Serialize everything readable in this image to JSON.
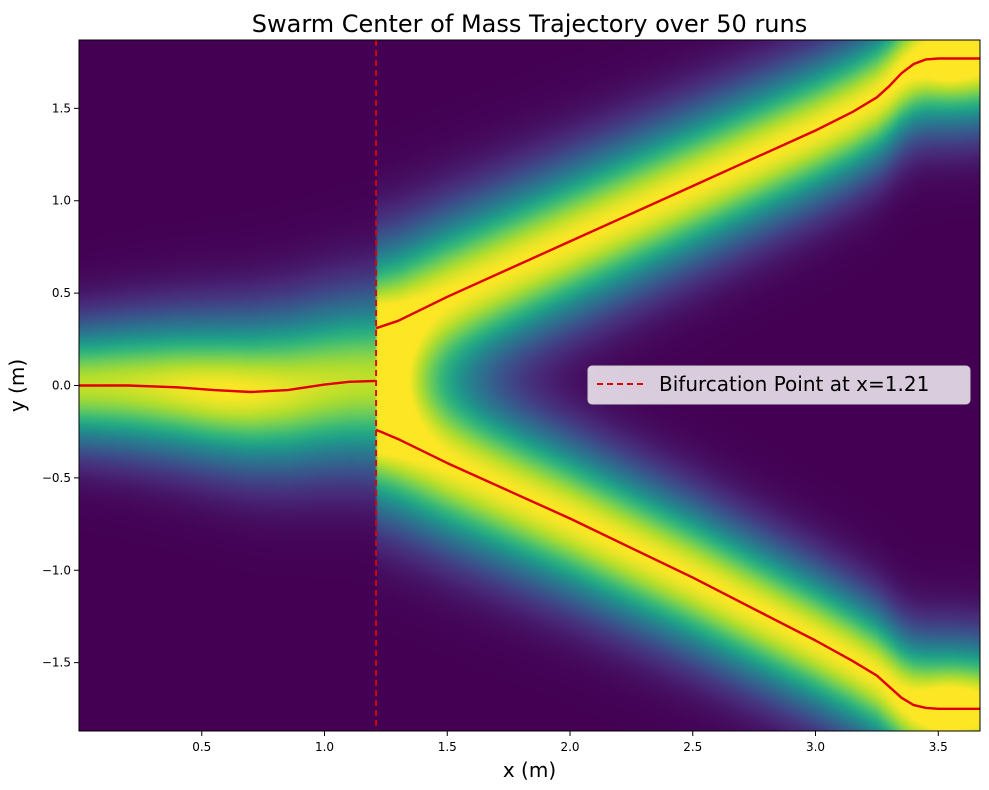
{
  "chart_data": {
    "type": "heatmap",
    "title": "Swarm Center of Mass Trajectory over 50 runs",
    "xlabel": "x (m)",
    "ylabel": "y (m)",
    "xlim": [
      0.0,
      3.67
    ],
    "ylim": [
      -1.87,
      1.87
    ],
    "xticks": [
      0.5,
      1.0,
      1.5,
      2.0,
      2.5,
      3.0,
      3.5
    ],
    "xtick_labels": [
      "0.5",
      "1.0",
      "1.5",
      "2.0",
      "2.5",
      "3.0",
      "3.5"
    ],
    "yticks": [
      -1.5,
      -1.0,
      -0.5,
      0.0,
      0.5,
      1.0,
      1.5
    ],
    "ytick_labels": [
      "−1.5",
      "−1.0",
      "−0.5",
      "0.0",
      "0.5",
      "1.0",
      "1.5"
    ],
    "colormap": "viridis",
    "bifurcation_x": 1.21,
    "legend": {
      "entries": [
        {
          "label": "Bifurcation Point at x=1.21",
          "style": "dashed",
          "color": "#e00000"
        }
      ],
      "placement": "center-right"
    },
    "series": [
      {
        "color": "#e00000",
        "x": [
          0.0,
          0.2,
          0.4,
          0.55,
          0.7,
          0.85,
          1.0,
          1.1,
          1.21
        ],
        "y": [
          0.0,
          0.0,
          -0.01,
          -0.025,
          -0.035,
          -0.025,
          0.005,
          0.02,
          0.025
        ]
      },
      {
        "color": "#e00000",
        "x": [
          1.21,
          1.3,
          1.5,
          1.75,
          2.0,
          2.25,
          2.5,
          2.75,
          3.0,
          3.15,
          3.25,
          3.3,
          3.35,
          3.4,
          3.45,
          3.5,
          3.67
        ],
        "y": [
          0.31,
          0.35,
          0.48,
          0.63,
          0.78,
          0.93,
          1.08,
          1.23,
          1.38,
          1.48,
          1.56,
          1.62,
          1.69,
          1.74,
          1.765,
          1.77,
          1.77
        ]
      },
      {
        "color": "#e00000",
        "x": [
          1.21,
          1.3,
          1.5,
          1.75,
          2.0,
          2.25,
          2.5,
          2.75,
          3.0,
          3.15,
          3.25,
          3.3,
          3.35,
          3.4,
          3.45,
          3.5,
          3.67
        ],
        "y": [
          -0.24,
          -0.29,
          -0.42,
          -0.57,
          -0.72,
          -0.88,
          -1.04,
          -1.21,
          -1.38,
          -1.49,
          -1.57,
          -1.63,
          -1.69,
          -1.73,
          -1.745,
          -1.75,
          -1.75
        ]
      }
    ],
    "density": {
      "description_free": true,
      "branches": [
        {
          "x_range": [
            0.0,
            1.21
          ],
          "center": "series0",
          "sigma": [
            0.22,
            0.32
          ]
        },
        {
          "x_range": [
            1.21,
            3.67
          ],
          "center": "series1",
          "sigma": [
            0.3,
            0.24
          ]
        },
        {
          "x_range": [
            1.21,
            3.67
          ],
          "center": "series2",
          "sigma": [
            0.3,
            0.24
          ]
        }
      ]
    }
  }
}
